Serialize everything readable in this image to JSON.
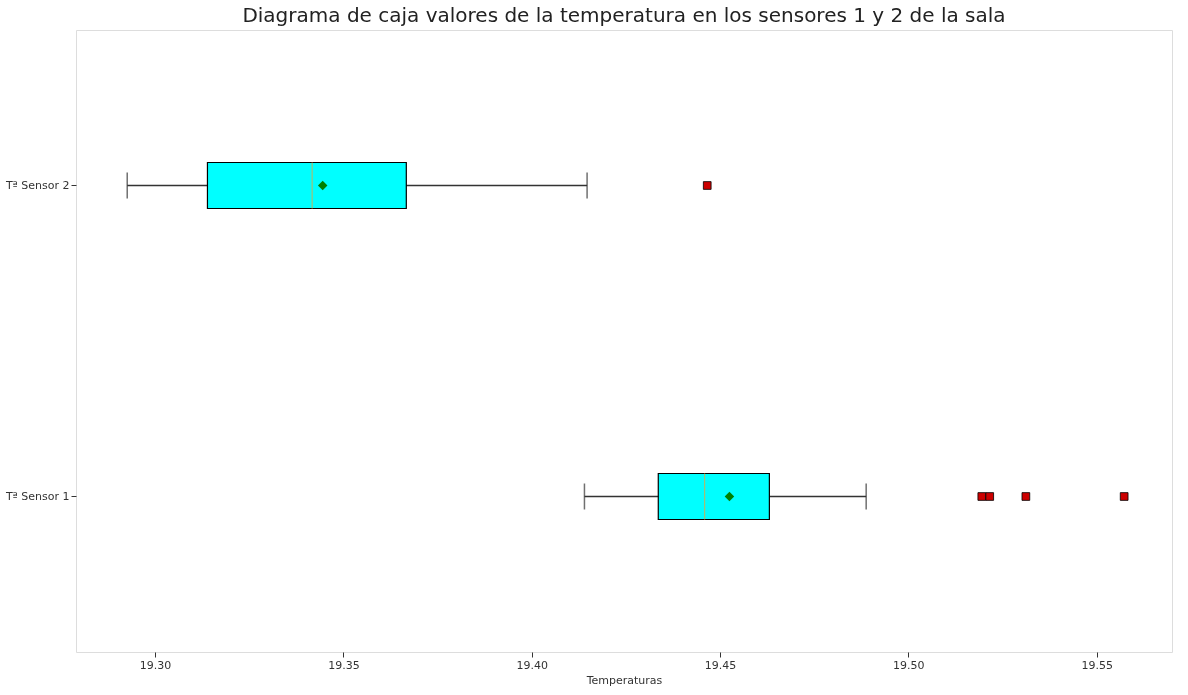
{
  "chart_data": {
    "type": "box",
    "title": "Diagrama de caja valores de la temperatura en los sensores 1 y 2 de la sala",
    "xlabel": "Temperaturas",
    "orientation": "horizontal",
    "color": "#00ffff",
    "grid": false,
    "categories": [
      "Tª Sensor 2",
      "Tª Sensor 1"
    ],
    "boxes": [
      {
        "low": 19.2926,
        "q1": 19.3139,
        "median": 19.3417,
        "q3": 19.3667,
        "high": 19.4147,
        "mean": 19.3445,
        "outliers": [
          19.4466
        ]
      },
      {
        "low": 19.414,
        "q1": 19.4336,
        "median": 19.4459,
        "q3": 19.4631,
        "high": 19.4888,
        "mean": 19.4525,
        "outliers": [
          19.5195,
          19.5216,
          19.5312,
          19.5573
        ]
      }
    ],
    "xlim": [
      19.279,
      19.57
    ],
    "xticks": [
      {
        "value": 19.3,
        "label": "19.30"
      },
      {
        "value": 19.35,
        "label": "19.35"
      },
      {
        "value": 19.4,
        "label": "19.40"
      },
      {
        "value": 19.45,
        "label": "19.45"
      },
      {
        "value": 19.5,
        "label": "19.50"
      },
      {
        "value": 19.55,
        "label": "19.55"
      }
    ]
  }
}
